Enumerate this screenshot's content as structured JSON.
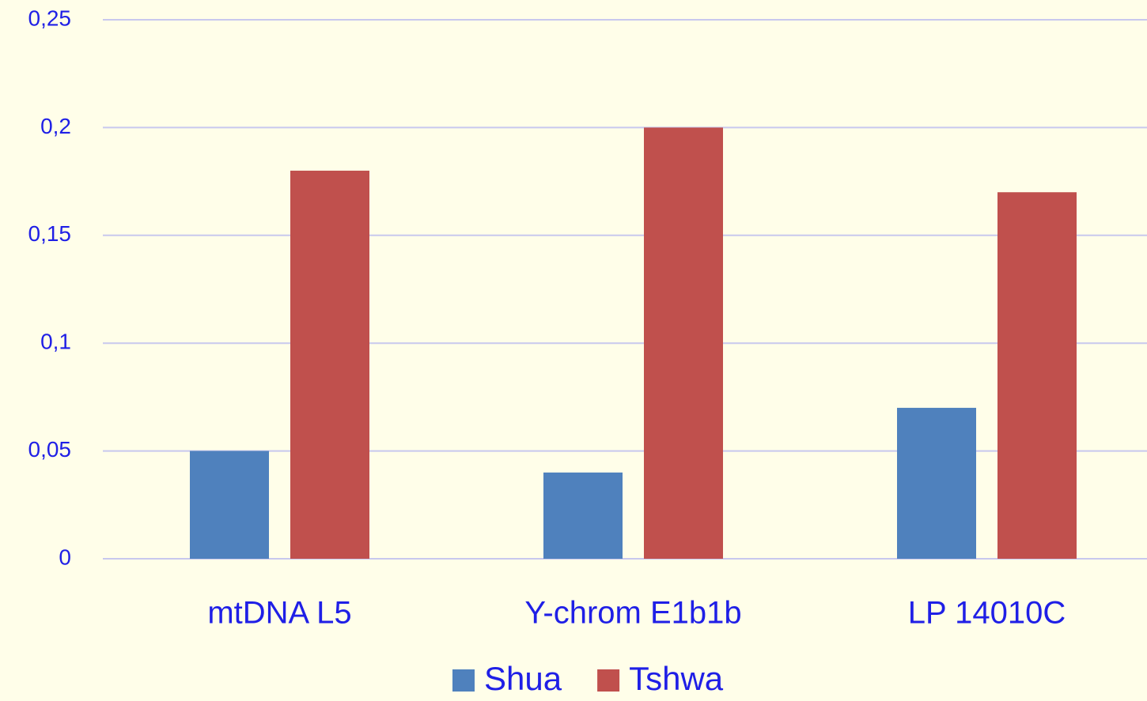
{
  "chart_data": {
    "type": "bar",
    "categories": [
      "mtDNA L5",
      "Y-chrom E1b1b",
      "LP 14010C"
    ],
    "series": [
      {
        "name": "Shua",
        "color": "#4f81bd",
        "values": [
          0.05,
          0.04,
          0.07
        ]
      },
      {
        "name": "Tshwa",
        "color": "#c0504d",
        "values": [
          0.18,
          0.2,
          0.17
        ]
      }
    ],
    "ylim": [
      0,
      0.25
    ],
    "yticks": [
      0,
      {
        "value": 0.05,
        "label": "0,05"
      },
      {
        "value": 0.1,
        "label": "0,1"
      },
      {
        "value": 0.15,
        "label": "0,15"
      },
      {
        "value": 0.2,
        "label": "0,2"
      },
      {
        "value": 0.25,
        "label": "0,25"
      }
    ],
    "grid": true,
    "legend": "bottom"
  }
}
